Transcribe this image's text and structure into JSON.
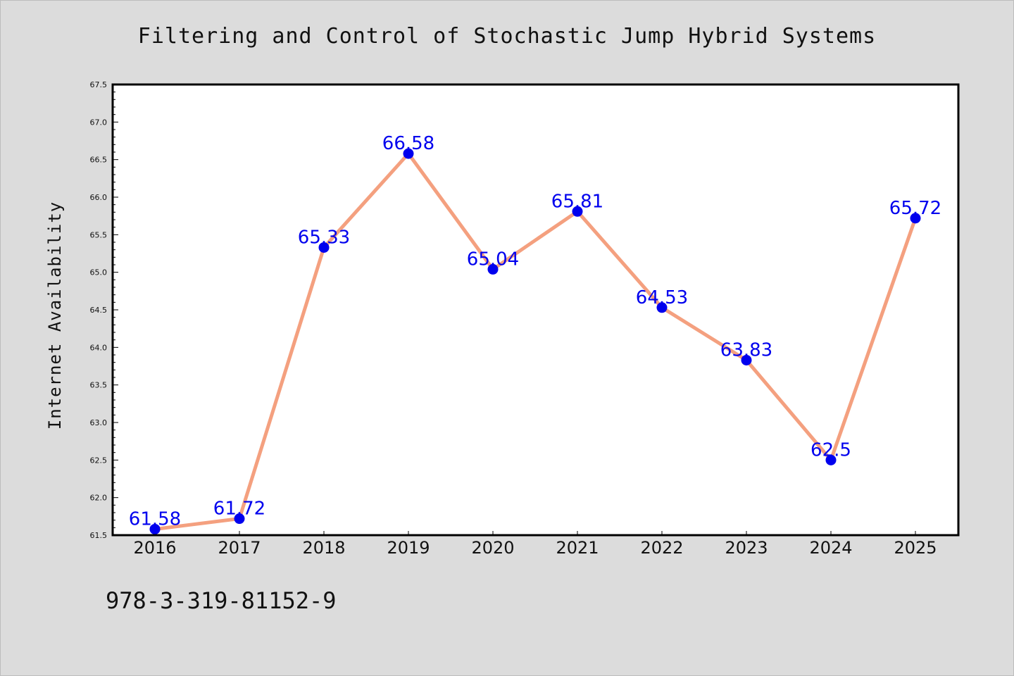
{
  "chart_data": {
    "type": "line",
    "title": "Filtering and Control of Stochastic Jump Hybrid Systems",
    "xlabel": "",
    "ylabel": "Internet Availability",
    "categories": [
      "2016",
      "2017",
      "2018",
      "2019",
      "2020",
      "2021",
      "2022",
      "2023",
      "2024",
      "2025"
    ],
    "values": [
      61.58,
      61.72,
      65.33,
      66.58,
      65.04,
      65.81,
      64.53,
      63.83,
      62.5,
      65.72
    ],
    "data_labels": [
      "61.58",
      "61.72",
      "65.33",
      "66.58",
      "65.04",
      "65.81",
      "64.53",
      "63.83",
      "62.5",
      "65.72"
    ],
    "ylim": [
      61.5,
      67.5
    ],
    "yticks": [
      "61.5",
      "62.0",
      "62.5",
      "63.0",
      "63.5",
      "64.0",
      "64.5",
      "65.0",
      "65.5",
      "66.0",
      "66.5",
      "67.0",
      "67.5"
    ],
    "grid": false,
    "colors": {
      "line": "#f4a07f",
      "marker": "#0000ee",
      "label": "#0000ee"
    }
  },
  "footer": {
    "isbn": "978-3-319-81152-9"
  }
}
